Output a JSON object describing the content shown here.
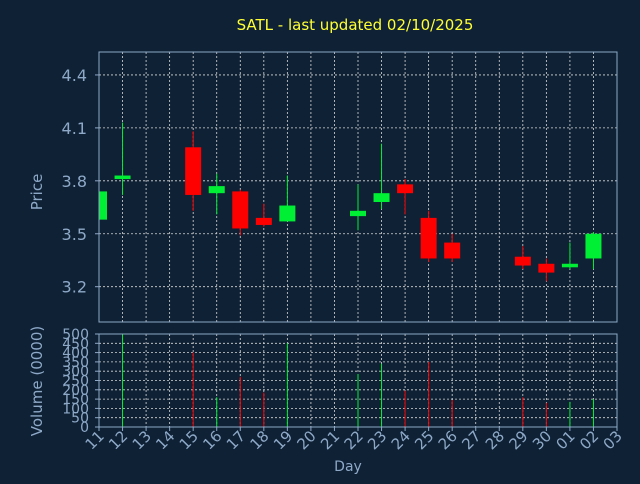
{
  "chart_data": {
    "type": "candlestick",
    "title": "SATL - last updated 02/10/2025",
    "colors": {
      "background": "#0f2135",
      "axis": "#8ea9c8",
      "grid": "#d8d8d8",
      "title": "#ffff33",
      "up": "#00ee33",
      "down": "#ff0000"
    },
    "price_panel": {
      "ylabel": "Price",
      "ylim": [
        3.0,
        4.53
      ],
      "yticks": [
        {
          "value": 3.2,
          "label": "3.2"
        },
        {
          "value": 3.5,
          "label": "3.5"
        },
        {
          "value": 3.8,
          "label": "3.8"
        },
        {
          "value": 4.1,
          "label": "4.1"
        },
        {
          "value": 4.4,
          "label": "4.4"
        }
      ],
      "grid": true
    },
    "volume_panel": {
      "ylabel": "Volume (0000)",
      "ylim": [
        0,
        500
      ],
      "yticks": [
        {
          "value": 0,
          "label": "0"
        },
        {
          "value": 50,
          "label": "50"
        },
        {
          "value": 100,
          "label": "100"
        },
        {
          "value": 150,
          "label": "150"
        },
        {
          "value": 200,
          "label": "200"
        },
        {
          "value": 250,
          "label": "250"
        },
        {
          "value": 300,
          "label": "300"
        },
        {
          "value": 350,
          "label": "350"
        },
        {
          "value": 400,
          "label": "400"
        },
        {
          "value": 450,
          "label": "450"
        },
        {
          "value": 500,
          "label": "500"
        }
      ],
      "grid": true
    },
    "xlabel": "Day",
    "x_ticks": [
      "11",
      "12",
      "13",
      "14",
      "15",
      "16",
      "17",
      "18",
      "19",
      "20",
      "21",
      "22",
      "23",
      "24",
      "25",
      "26",
      "27",
      "28",
      "29",
      "30",
      "01",
      "02",
      "03"
    ],
    "candles": [
      {
        "day": "11",
        "open": 3.58,
        "high": 3.75,
        "low": 3.58,
        "close": 3.74,
        "volume": 0
      },
      {
        "day": "12",
        "open": 3.81,
        "high": 4.13,
        "low": 3.72,
        "close": 3.83,
        "volume": 500
      },
      {
        "day": "15",
        "open": 3.99,
        "high": 4.08,
        "low": 3.63,
        "close": 3.72,
        "volume": 400
      },
      {
        "day": "16",
        "open": 3.73,
        "high": 3.84,
        "low": 3.61,
        "close": 3.77,
        "volume": 160
      },
      {
        "day": "17",
        "open": 3.74,
        "high": 3.75,
        "low": 3.49,
        "close": 3.53,
        "volume": 270
      },
      {
        "day": "18",
        "open": 3.59,
        "high": 3.67,
        "low": 3.54,
        "close": 3.55,
        "volume": 185
      },
      {
        "day": "19",
        "open": 3.57,
        "high": 3.83,
        "low": 3.57,
        "close": 3.66,
        "volume": 450
      },
      {
        "day": "22",
        "open": 3.6,
        "high": 3.78,
        "low": 3.52,
        "close": 3.63,
        "volume": 285
      },
      {
        "day": "23",
        "open": 3.68,
        "high": 4.01,
        "low": 3.64,
        "close": 3.73,
        "volume": 340
      },
      {
        "day": "24",
        "open": 3.78,
        "high": 3.81,
        "low": 3.61,
        "close": 3.73,
        "volume": 195
      },
      {
        "day": "25",
        "open": 3.59,
        "high": 3.63,
        "low": 3.34,
        "close": 3.36,
        "volume": 350
      },
      {
        "day": "26",
        "open": 3.45,
        "high": 3.5,
        "low": 3.34,
        "close": 3.36,
        "volume": 145
      },
      {
        "day": "29",
        "open": 3.37,
        "high": 3.43,
        "low": 3.3,
        "close": 3.32,
        "volume": 160
      },
      {
        "day": "30",
        "open": 3.33,
        "high": 3.36,
        "low": 3.23,
        "close": 3.28,
        "volume": 130
      },
      {
        "day": "01",
        "open": 3.31,
        "high": 3.45,
        "low": 3.3,
        "close": 3.33,
        "volume": 135
      },
      {
        "day": "02",
        "open": 3.36,
        "high": 3.51,
        "low": 3.3,
        "close": 3.5,
        "volume": 150
      }
    ]
  }
}
